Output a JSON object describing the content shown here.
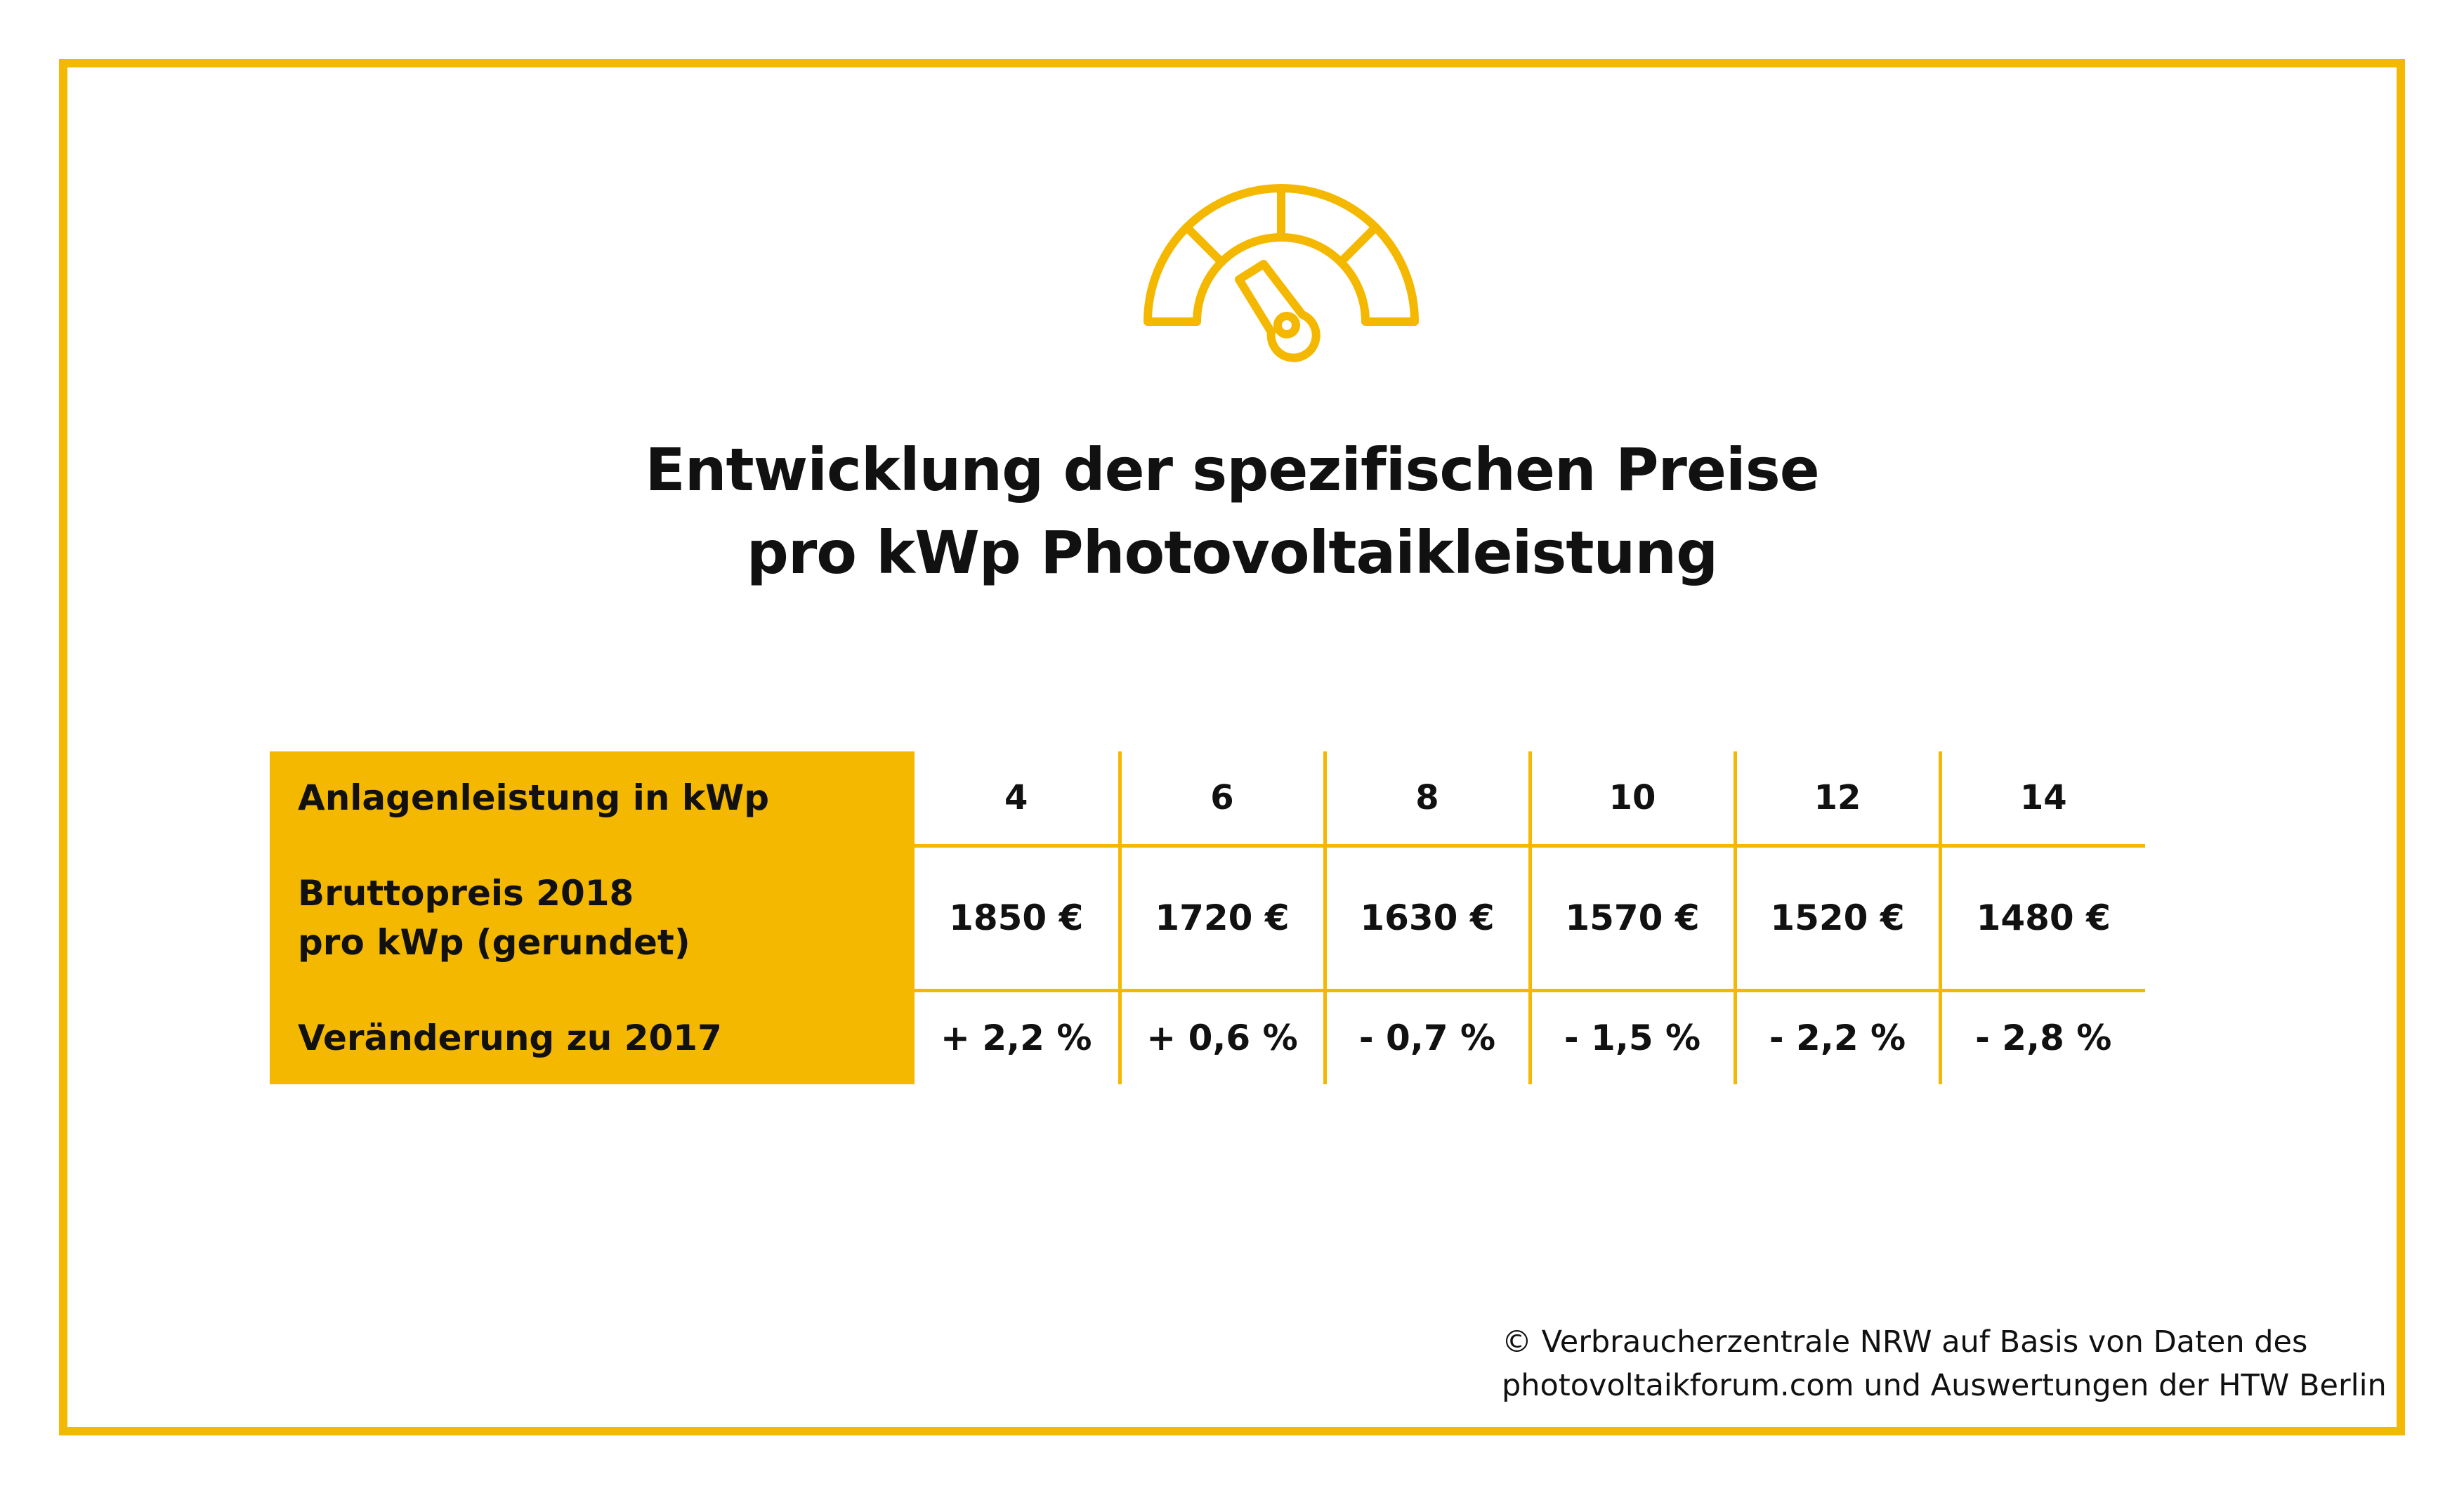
{
  "title": {
    "line1": "Entwicklung der spezifischen Preise",
    "line2": "pro kWp Photovoltaikleistung"
  },
  "icon": "speedometer-gauge-icon",
  "colors": {
    "accent": "#f5b800",
    "text": "#111111",
    "background": "#ffffff"
  },
  "chart_data": {
    "type": "table",
    "title": "Entwicklung der spezifischen Preise pro kWp Photovoltaikleistung",
    "rows": [
      {
        "label": "Anlagenleistung in kWp",
        "values": [
          "4",
          "6",
          "8",
          "10",
          "12",
          "14"
        ]
      },
      {
        "label_line1": "Bruttopreis 2018",
        "label_line2": "pro kWp (gerundet)",
        "values": [
          "1850 €",
          "1720 €",
          "1630 €",
          "1570 €",
          "1520 €",
          "1480 €"
        ]
      },
      {
        "label": "Veränderung zu 2017",
        "values": [
          "+ 2,2 %",
          "+ 0,6 %",
          "-  0,7 %",
          "- 1,5 %",
          "- 2,2 %",
          "- 2,8 %"
        ]
      }
    ]
  },
  "source": {
    "line1": "© Verbraucherzentrale NRW auf Basis von Daten des",
    "line2": "photovoltaikforum.com und Auswertungen der HTW Berlin"
  }
}
